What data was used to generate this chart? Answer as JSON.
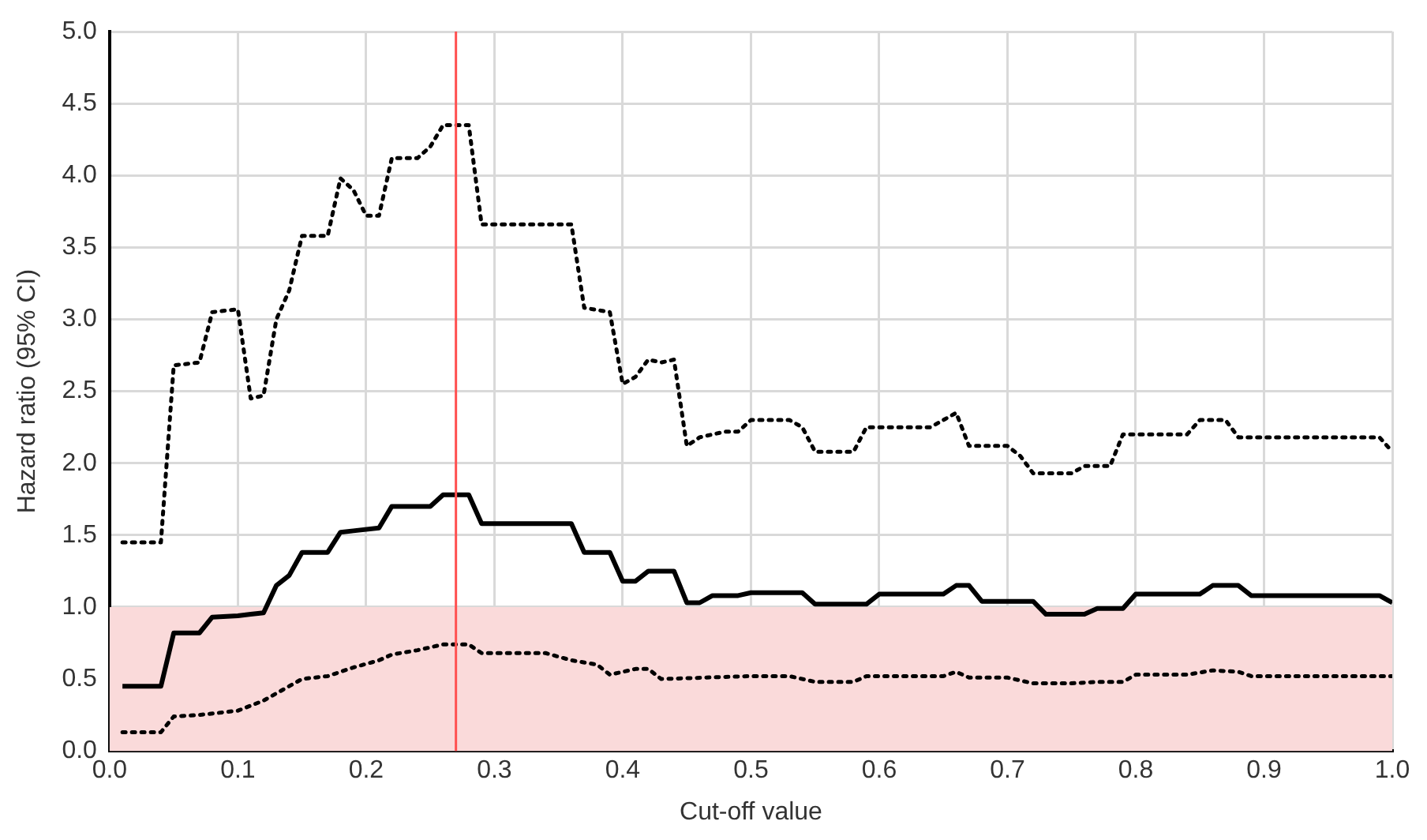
{
  "chart_data": {
    "type": "line",
    "xlabel": "Cut-off value",
    "ylabel": "Hazard ratio (95% CI)",
    "xlim": [
      0,
      1
    ],
    "ylim": [
      0,
      5
    ],
    "xticks": [
      {
        "value": 0,
        "label": "0.0"
      },
      {
        "value": 0.1,
        "label": "0.1"
      },
      {
        "value": 0.2,
        "label": "0.2"
      },
      {
        "value": 0.3,
        "label": "0.3"
      },
      {
        "value": 0.4,
        "label": "0.4"
      },
      {
        "value": 0.5,
        "label": "0.5"
      },
      {
        "value": 0.6,
        "label": "0.6"
      },
      {
        "value": 0.7,
        "label": "0.7"
      },
      {
        "value": 0.8,
        "label": "0.8"
      },
      {
        "value": 0.9,
        "label": "0.9"
      },
      {
        "value": 1,
        "label": "1.0"
      }
    ],
    "yticks": [
      {
        "value": 0,
        "label": "0.0"
      },
      {
        "value": 0.5,
        "label": "0.5"
      },
      {
        "value": 1,
        "label": "1.0"
      },
      {
        "value": 1.5,
        "label": "1.5"
      },
      {
        "value": 2,
        "label": "2.0"
      },
      {
        "value": 2.5,
        "label": "2.5"
      },
      {
        "value": 3,
        "label": "3.0"
      },
      {
        "value": 3.5,
        "label": "3.5"
      },
      {
        "value": 4,
        "label": "4.0"
      },
      {
        "value": 4.5,
        "label": "4.5"
      },
      {
        "value": 5,
        "label": "5.0"
      }
    ],
    "grid": true,
    "legend": false,
    "marker": "none",
    "series": [
      {
        "color": "#000000",
        "line_style": "solid",
        "x": [
          0.01,
          0.04,
          0.05,
          0.07,
          0.08,
          0.1,
          0.11,
          0.12,
          0.13,
          0.14,
          0.15,
          0.17,
          0.18,
          0.19,
          0.21,
          0.22,
          0.25,
          0.26,
          0.28,
          0.29,
          0.36,
          0.37,
          0.39,
          0.4,
          0.41,
          0.42,
          0.44,
          0.45,
          0.46,
          0.47,
          0.49,
          0.5,
          0.54,
          0.55,
          0.59,
          0.6,
          0.65,
          0.66,
          0.67,
          0.68,
          0.72,
          0.73,
          0.76,
          0.77,
          0.79,
          0.8,
          0.85,
          0.86,
          0.88,
          0.89,
          0.99,
          1.0
        ],
        "values": [
          0.45,
          0.45,
          0.82,
          0.82,
          0.93,
          0.94,
          0.95,
          0.96,
          1.15,
          1.22,
          1.38,
          1.38,
          1.52,
          1.53,
          1.55,
          1.7,
          1.7,
          1.78,
          1.78,
          1.58,
          1.58,
          1.38,
          1.38,
          1.18,
          1.18,
          1.25,
          1.25,
          1.03,
          1.03,
          1.08,
          1.08,
          1.1,
          1.1,
          1.02,
          1.02,
          1.09,
          1.09,
          1.15,
          1.15,
          1.04,
          1.04,
          0.95,
          0.95,
          0.99,
          0.99,
          1.09,
          1.09,
          1.15,
          1.15,
          1.08,
          1.08,
          1.03
        ]
      },
      {
        "color": "#000000",
        "line_style": "dotted",
        "x": [
          0.01,
          0.04,
          0.05,
          0.07,
          0.08,
          0.1,
          0.11,
          0.12,
          0.13,
          0.14,
          0.15,
          0.17,
          0.18,
          0.19,
          0.2,
          0.21,
          0.22,
          0.24,
          0.25,
          0.26,
          0.28,
          0.29,
          0.36,
          0.37,
          0.39,
          0.4,
          0.41,
          0.42,
          0.43,
          0.44,
          0.45,
          0.46,
          0.48,
          0.49,
          0.5,
          0.53,
          0.54,
          0.55,
          0.58,
          0.59,
          0.64,
          0.66,
          0.67,
          0.7,
          0.71,
          0.72,
          0.75,
          0.76,
          0.78,
          0.79,
          0.84,
          0.85,
          0.87,
          0.88,
          0.99,
          1.0
        ],
        "values": [
          1.45,
          1.45,
          2.68,
          2.7,
          3.05,
          3.07,
          2.45,
          2.47,
          3.0,
          3.2,
          3.58,
          3.58,
          3.98,
          3.9,
          3.72,
          3.72,
          4.12,
          4.12,
          4.2,
          4.35,
          4.35,
          3.66,
          3.66,
          3.08,
          3.05,
          2.55,
          2.6,
          2.72,
          2.7,
          2.72,
          2.12,
          2.18,
          2.22,
          2.22,
          2.3,
          2.3,
          2.25,
          2.08,
          2.08,
          2.25,
          2.25,
          2.35,
          2.12,
          2.12,
          2.05,
          1.93,
          1.93,
          1.98,
          1.98,
          2.2,
          2.2,
          2.3,
          2.3,
          2.18,
          2.18,
          2.08
        ]
      },
      {
        "color": "#000000",
        "line_style": "dotted",
        "x": [
          0.01,
          0.04,
          0.05,
          0.07,
          0.09,
          0.1,
          0.12,
          0.14,
          0.15,
          0.17,
          0.19,
          0.21,
          0.22,
          0.24,
          0.26,
          0.28,
          0.29,
          0.34,
          0.36,
          0.38,
          0.39,
          0.41,
          0.42,
          0.43,
          0.5,
          0.53,
          0.55,
          0.58,
          0.59,
          0.65,
          0.66,
          0.67,
          0.7,
          0.72,
          0.75,
          0.77,
          0.79,
          0.8,
          0.84,
          0.86,
          0.88,
          0.89,
          1.0
        ],
        "values": [
          0.13,
          0.13,
          0.24,
          0.25,
          0.27,
          0.28,
          0.35,
          0.45,
          0.5,
          0.52,
          0.58,
          0.63,
          0.67,
          0.7,
          0.74,
          0.74,
          0.68,
          0.68,
          0.63,
          0.6,
          0.53,
          0.57,
          0.57,
          0.5,
          0.52,
          0.52,
          0.48,
          0.48,
          0.52,
          0.52,
          0.55,
          0.51,
          0.51,
          0.47,
          0.47,
          0.48,
          0.48,
          0.53,
          0.53,
          0.56,
          0.55,
          0.52,
          0.52
        ]
      }
    ],
    "ref_lines": [
      {
        "axis": "x",
        "value": 0.27,
        "color": "#ff5050"
      }
    ],
    "bands": [
      {
        "axis": "y",
        "from": 0,
        "to": 1,
        "color": "#fadada"
      }
    ]
  }
}
